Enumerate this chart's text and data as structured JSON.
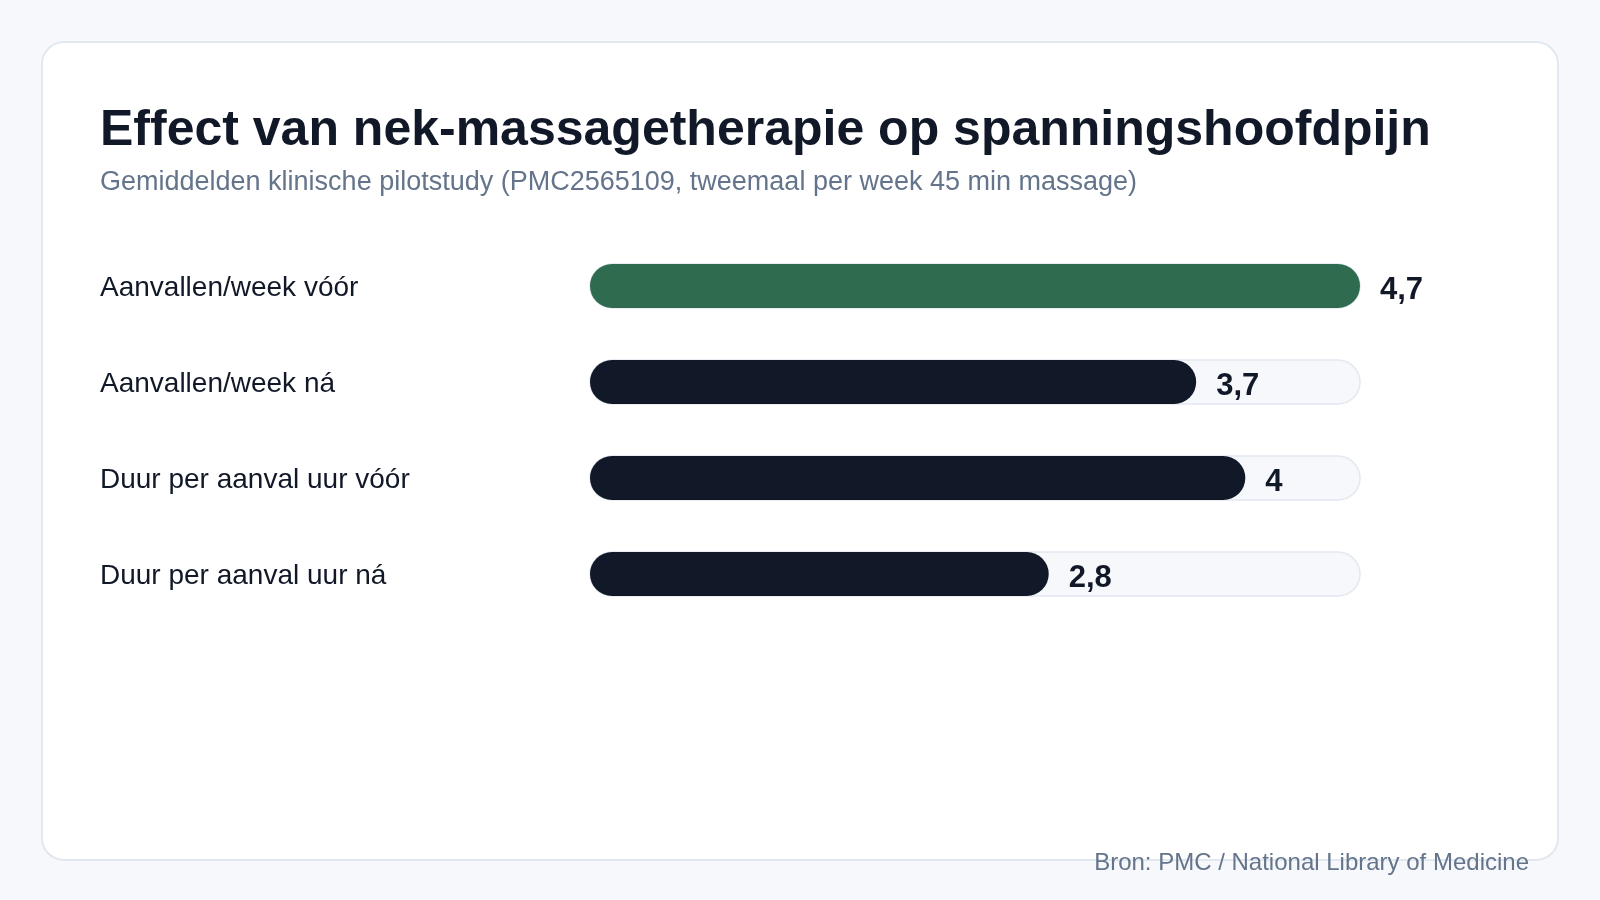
{
  "chart_data": {
    "type": "bar",
    "orientation": "horizontal",
    "title": "Effect van nek-massagetherapie op spanningshoofdpijn",
    "subtitle": "Gemiddelden klinische pilotstudy (PMC2565109, tweemaal per week 45 min massage)",
    "categories": [
      "Aanvallen/week vóór",
      "Aanvallen/week ná",
      "Duur per aanval uur vóór",
      "Duur per aanval uur ná"
    ],
    "values": [
      4.7,
      3.7,
      4,
      2.8
    ],
    "colors": [
      "#2e6b4f",
      "#111827",
      "#111827",
      "#111827"
    ],
    "value_labels": [
      "4,7",
      "3,7",
      "4",
      "2,8"
    ],
    "annotations": [
      "Bron: PMC / National Library of Medicine"
    ]
  }
}
